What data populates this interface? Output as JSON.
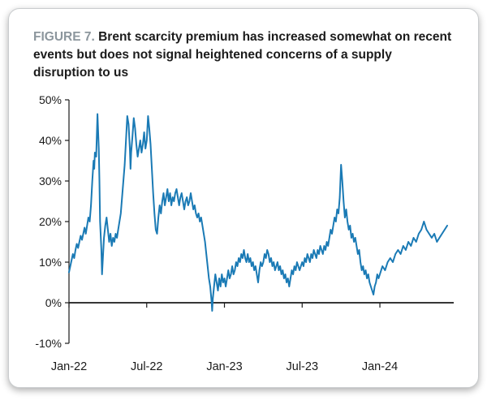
{
  "figure": {
    "label": "FIGURE 7.",
    "title": "Brent scarcity premium has increased somewhat on recent events but does not signal heightened concerns of a supply disruption to us"
  },
  "colors": {
    "line": "#1a7ab5",
    "axis": "#1a1a1a",
    "fig_label": "#8c969d",
    "card_border": "#c9ccce"
  },
  "chart_data": {
    "type": "line",
    "title": "Brent scarcity premium",
    "xlabel": "",
    "ylabel": "",
    "grid": false,
    "legend": "none",
    "x_unit": "months since Jan-2022",
    "xlim": [
      0,
      29.7
    ],
    "ylim": [
      -10,
      50
    ],
    "y_tick_suffix": "%",
    "y_ticks": [
      50,
      40,
      30,
      20,
      10,
      0,
      -10
    ],
    "x_ticks": [
      {
        "x": 0,
        "label": "Jan-22"
      },
      {
        "x": 6,
        "label": "Jul-22"
      },
      {
        "x": 12,
        "label": "Jan-23"
      },
      {
        "x": 18,
        "label": "Jul-23"
      },
      {
        "x": 24,
        "label": "Jan-24"
      }
    ],
    "series": [
      {
        "name": "Brent scarcity premium",
        "points": [
          [
            0,
            7.5
          ],
          [
            0.1,
            9
          ],
          [
            0.2,
            10.5
          ],
          [
            0.3,
            12
          ],
          [
            0.4,
            11
          ],
          [
            0.5,
            13
          ],
          [
            0.6,
            14.5
          ],
          [
            0.7,
            13.5
          ],
          [
            0.8,
            15
          ],
          [
            0.9,
            16.5
          ],
          [
            1.0,
            15.5
          ],
          [
            1.1,
            17
          ],
          [
            1.2,
            18.5
          ],
          [
            1.3,
            17
          ],
          [
            1.4,
            19
          ],
          [
            1.5,
            21
          ],
          [
            1.6,
            20
          ],
          [
            1.7,
            24
          ],
          [
            1.8,
            30
          ],
          [
            1.9,
            35
          ],
          [
            1.95,
            33
          ],
          [
            2.0,
            37
          ],
          [
            2.1,
            36
          ],
          [
            2.2,
            46.5
          ],
          [
            2.3,
            38
          ],
          [
            2.35,
            30
          ],
          [
            2.4,
            20
          ],
          [
            2.5,
            13
          ],
          [
            2.55,
            7
          ],
          [
            2.6,
            10
          ],
          [
            2.7,
            16
          ],
          [
            2.8,
            19
          ],
          [
            2.9,
            21
          ],
          [
            3.0,
            18
          ],
          [
            3.1,
            15
          ],
          [
            3.2,
            17
          ],
          [
            3.3,
            14
          ],
          [
            3.4,
            16
          ],
          [
            3.5,
            15
          ],
          [
            3.6,
            17
          ],
          [
            3.7,
            16
          ],
          [
            3.8,
            18
          ],
          [
            3.9,
            20
          ],
          [
            4.0,
            22
          ],
          [
            4.1,
            26
          ],
          [
            4.2,
            30
          ],
          [
            4.3,
            34
          ],
          [
            4.4,
            40
          ],
          [
            4.5,
            46
          ],
          [
            4.6,
            44
          ],
          [
            4.7,
            38
          ],
          [
            4.75,
            33
          ],
          [
            4.8,
            37
          ],
          [
            4.9,
            41
          ],
          [
            5.0,
            45.5
          ],
          [
            5.1,
            43
          ],
          [
            5.2,
            39
          ],
          [
            5.3,
            36
          ],
          [
            5.4,
            38
          ],
          [
            5.5,
            40
          ],
          [
            5.6,
            37
          ],
          [
            5.7,
            39
          ],
          [
            5.8,
            42
          ],
          [
            5.9,
            38
          ],
          [
            6.0,
            40
          ],
          [
            6.1,
            46
          ],
          [
            6.2,
            43
          ],
          [
            6.3,
            39
          ],
          [
            6.4,
            33
          ],
          [
            6.5,
            27
          ],
          [
            6.6,
            22
          ],
          [
            6.7,
            18
          ],
          [
            6.8,
            17
          ],
          [
            6.9,
            21
          ],
          [
            7.0,
            24
          ],
          [
            7.1,
            22
          ],
          [
            7.2,
            25
          ],
          [
            7.3,
            27
          ],
          [
            7.4,
            24
          ],
          [
            7.5,
            26
          ],
          [
            7.6,
            28
          ],
          [
            7.7,
            25
          ],
          [
            7.8,
            27
          ],
          [
            7.9,
            24
          ],
          [
            8.0,
            26
          ],
          [
            8.1,
            25
          ],
          [
            8.2,
            27
          ],
          [
            8.3,
            28
          ],
          [
            8.4,
            26
          ],
          [
            8.5,
            24
          ],
          [
            8.6,
            26
          ],
          [
            8.7,
            27
          ],
          [
            8.8,
            25
          ],
          [
            8.9,
            23
          ],
          [
            9.0,
            25
          ],
          [
            9.1,
            26
          ],
          [
            9.2,
            24
          ],
          [
            9.3,
            25
          ],
          [
            9.4,
            27
          ],
          [
            9.5,
            25
          ],
          [
            9.6,
            23
          ],
          [
            9.7,
            24
          ],
          [
            9.8,
            22
          ],
          [
            9.9,
            21
          ],
          [
            10.0,
            22
          ],
          [
            10.1,
            20
          ],
          [
            10.2,
            21
          ],
          [
            10.3,
            19
          ],
          [
            10.4,
            17
          ],
          [
            10.5,
            15
          ],
          [
            10.6,
            12
          ],
          [
            10.7,
            9
          ],
          [
            10.8,
            6
          ],
          [
            10.9,
            4
          ],
          [
            11.0,
            0.5
          ],
          [
            11.05,
            -2
          ],
          [
            11.1,
            1
          ],
          [
            11.2,
            4
          ],
          [
            11.3,
            7
          ],
          [
            11.4,
            5
          ],
          [
            11.5,
            3
          ],
          [
            11.6,
            6
          ],
          [
            11.7,
            4
          ],
          [
            11.8,
            7
          ],
          [
            11.9,
            5
          ],
          [
            12.0,
            6
          ],
          [
            12.1,
            4
          ],
          [
            12.2,
            6
          ],
          [
            12.3,
            8
          ],
          [
            12.4,
            6
          ],
          [
            12.5,
            7
          ],
          [
            12.6,
            9
          ],
          [
            12.7,
            7
          ],
          [
            12.8,
            8
          ],
          [
            12.9,
            10
          ],
          [
            13.0,
            9
          ],
          [
            13.1,
            11
          ],
          [
            13.2,
            10
          ],
          [
            13.3,
            12
          ],
          [
            13.4,
            11
          ],
          [
            13.5,
            13
          ],
          [
            13.6,
            11
          ],
          [
            13.7,
            10
          ],
          [
            13.8,
            12
          ],
          [
            13.9,
            10
          ],
          [
            14.0,
            11
          ],
          [
            14.1,
            9
          ],
          [
            14.2,
            10
          ],
          [
            14.3,
            8
          ],
          [
            14.4,
            9
          ],
          [
            14.5,
            7
          ],
          [
            14.6,
            5
          ],
          [
            14.7,
            8
          ],
          [
            14.8,
            10
          ],
          [
            14.9,
            9
          ],
          [
            15.0,
            10
          ],
          [
            15.1,
            12
          ],
          [
            15.2,
            11
          ],
          [
            15.3,
            13
          ],
          [
            15.4,
            12
          ],
          [
            15.5,
            10
          ],
          [
            15.6,
            11
          ],
          [
            15.7,
            9
          ],
          [
            15.8,
            10
          ],
          [
            15.9,
            8
          ],
          [
            16.0,
            9
          ],
          [
            16.1,
            10
          ],
          [
            16.2,
            8
          ],
          [
            16.3,
            9
          ],
          [
            16.4,
            7
          ],
          [
            16.5,
            8
          ],
          [
            16.6,
            6
          ],
          [
            16.7,
            7
          ],
          [
            16.8,
            5
          ],
          [
            16.9,
            6
          ],
          [
            17.0,
            4
          ],
          [
            17.1,
            6
          ],
          [
            17.2,
            8
          ],
          [
            17.3,
            7
          ],
          [
            17.4,
            9
          ],
          [
            17.5,
            8
          ],
          [
            17.6,
            10
          ],
          [
            17.7,
            9
          ],
          [
            17.8,
            8
          ],
          [
            17.9,
            9
          ],
          [
            18.0,
            10
          ],
          [
            18.1,
            9
          ],
          [
            18.2,
            11
          ],
          [
            18.3,
            10
          ],
          [
            18.4,
            12
          ],
          [
            18.5,
            11
          ],
          [
            18.6,
            10
          ],
          [
            18.7,
            12
          ],
          [
            18.8,
            11
          ],
          [
            18.9,
            13
          ],
          [
            19.0,
            12
          ],
          [
            19.1,
            11
          ],
          [
            19.2,
            13
          ],
          [
            19.3,
            12
          ],
          [
            19.4,
            14
          ],
          [
            19.5,
            13
          ],
          [
            19.6,
            12
          ],
          [
            19.7,
            14
          ],
          [
            19.8,
            13
          ],
          [
            19.9,
            15
          ],
          [
            20.0,
            14
          ],
          [
            20.1,
            16
          ],
          [
            20.2,
            18
          ],
          [
            20.3,
            17
          ],
          [
            20.4,
            19
          ],
          [
            20.5,
            21
          ],
          [
            20.6,
            20
          ],
          [
            20.7,
            23
          ],
          [
            20.8,
            22
          ],
          [
            20.9,
            26
          ],
          [
            21.0,
            34
          ],
          [
            21.1,
            30
          ],
          [
            21.2,
            25
          ],
          [
            21.3,
            21
          ],
          [
            21.4,
            23
          ],
          [
            21.5,
            20
          ],
          [
            21.6,
            18
          ],
          [
            21.7,
            19
          ],
          [
            21.8,
            16
          ],
          [
            21.9,
            17
          ],
          [
            22.0,
            15
          ],
          [
            22.1,
            16
          ],
          [
            22.2,
            14
          ],
          [
            22.3,
            12
          ],
          [
            22.4,
            13
          ],
          [
            22.5,
            10
          ],
          [
            22.6,
            8
          ],
          [
            22.7,
            9
          ],
          [
            22.8,
            7
          ],
          [
            22.9,
            8
          ],
          [
            23.0,
            6
          ],
          [
            23.1,
            7
          ],
          [
            23.2,
            5
          ],
          [
            23.3,
            4
          ],
          [
            23.4,
            3
          ],
          [
            23.5,
            2
          ],
          [
            23.6,
            4
          ],
          [
            23.7,
            5
          ],
          [
            23.8,
            7
          ],
          [
            23.9,
            6
          ],
          [
            24.0,
            7
          ],
          [
            24.2,
            9
          ],
          [
            24.4,
            8
          ],
          [
            24.6,
            10
          ],
          [
            24.8,
            11
          ],
          [
            25.0,
            10
          ],
          [
            25.2,
            12
          ],
          [
            25.4,
            13
          ],
          [
            25.6,
            12
          ],
          [
            25.8,
            14
          ],
          [
            26.0,
            13
          ],
          [
            26.2,
            15
          ],
          [
            26.4,
            14
          ],
          [
            26.6,
            16
          ],
          [
            26.8,
            15
          ],
          [
            27.0,
            17
          ],
          [
            27.2,
            18
          ],
          [
            27.4,
            20
          ],
          [
            27.6,
            18
          ],
          [
            27.8,
            17
          ],
          [
            28.0,
            16
          ],
          [
            28.2,
            17
          ],
          [
            28.4,
            15
          ],
          [
            28.6,
            16
          ],
          [
            28.8,
            17
          ],
          [
            29.0,
            18
          ],
          [
            29.2,
            19
          ]
        ]
      }
    ]
  }
}
